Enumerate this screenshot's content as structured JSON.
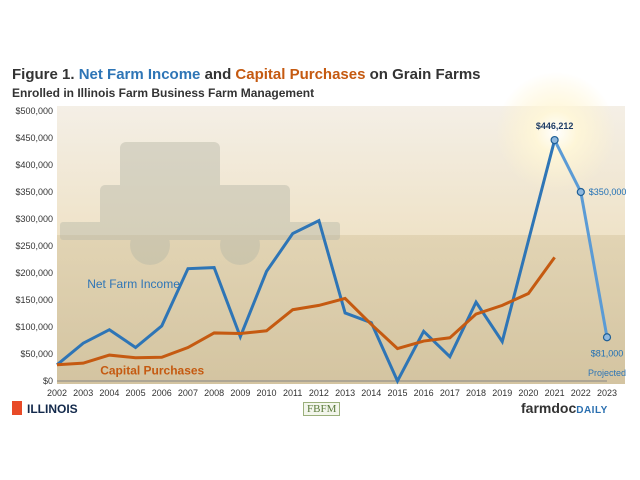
{
  "header": {
    "figure_label": "Figure 1.",
    "title_part1": "Net Farm Income",
    "title_and": "and",
    "title_part2": "Capital Purchases",
    "title_suffix": "on Grain Farms",
    "subtitle": "Enrolled in Illinois Farm Business Farm Management"
  },
  "footer": {
    "university": "ILLINOIS",
    "fbfm_logo": "FBFM",
    "farmdoc_name": "farmdoc",
    "farmdoc_daily": "DAILY"
  },
  "colors": {
    "net_farm_income": "#2e75b6",
    "capital_purchases": "#c55a11",
    "projected": "#5b9bd5",
    "title_blue": "#2e75b6",
    "title_orange": "#c55a11"
  },
  "chart_data": {
    "type": "line",
    "categories": [
      "2002",
      "2003",
      "2004",
      "2005",
      "2006",
      "2007",
      "2008",
      "2009",
      "2010",
      "2011",
      "2012",
      "2013",
      "2014",
      "2015",
      "2016",
      "2017",
      "2018",
      "2019",
      "2020",
      "2021",
      "2022",
      "2023"
    ],
    "ylim": [
      0,
      500000
    ],
    "yticks": [
      "$0",
      "$50,000",
      "$100,000",
      "$150,000",
      "$200,000",
      "$250,000",
      "$300,000",
      "$350,000",
      "$400,000",
      "$450,000",
      "$500,000"
    ],
    "series": [
      {
        "name": "Net Farm Income",
        "values": [
          30000,
          70000,
          95000,
          62000,
          102000,
          208000,
          210000,
          82000,
          203000,
          273000,
          297000,
          126000,
          108000,
          0,
          92000,
          45000,
          146000,
          73000,
          260000,
          446212,
          null,
          null
        ]
      },
      {
        "name": "Capital Purchases",
        "values": [
          30000,
          33000,
          48000,
          43000,
          44000,
          62000,
          89000,
          88000,
          93000,
          132000,
          140000,
          153000,
          105000,
          60000,
          74000,
          80000,
          124000,
          140000,
          162000,
          229000,
          null,
          null
        ]
      },
      {
        "name": "Projected",
        "values": [
          null,
          null,
          null,
          null,
          null,
          null,
          null,
          null,
          null,
          null,
          null,
          null,
          null,
          null,
          null,
          null,
          null,
          null,
          null,
          446212,
          350000,
          81000
        ]
      }
    ],
    "annotations": [
      {
        "text": "$446,212",
        "x": "2021",
        "y": 446212
      },
      {
        "text": "$350,000",
        "x": "2022",
        "y": 350000
      },
      {
        "text": "$81,000",
        "x": "2023",
        "y": 81000
      },
      {
        "text": "Projected",
        "x": "2023",
        "y": 0
      }
    ],
    "grid": false,
    "legend": "inline labels"
  }
}
